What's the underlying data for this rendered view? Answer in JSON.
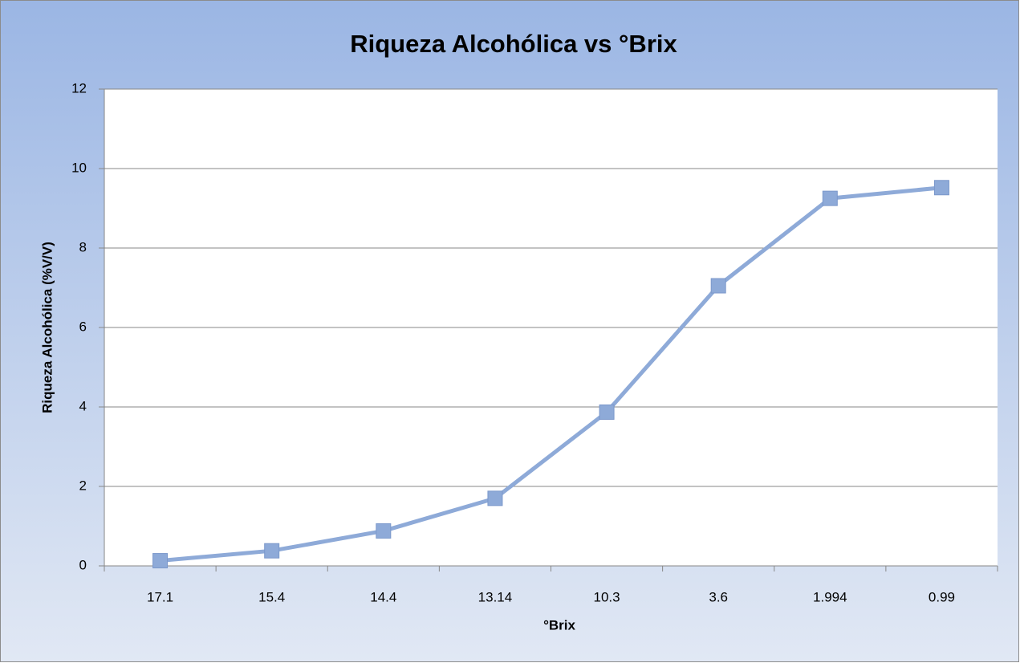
{
  "chart_data": {
    "type": "line",
    "title": "Riqueza Alcohólica vs °Brix",
    "x_label": "°Brix",
    "y_label": "Riqueza Alcohólica (%V/V)",
    "categories": [
      "17.1",
      "15.4",
      "14.4",
      "13.14",
      "10.3",
      "3.6",
      "1.994",
      "0.99"
    ],
    "series": [
      {
        "name": "Riqueza Alcohólica",
        "color": "#8eaad8",
        "values": [
          0.13,
          0.38,
          0.88,
          1.7,
          3.87,
          7.05,
          9.25,
          9.52
        ]
      }
    ],
    "ylim": [
      0,
      12
    ],
    "yticks": [
      0,
      2,
      4,
      6,
      8,
      10,
      12
    ],
    "grid": true
  }
}
